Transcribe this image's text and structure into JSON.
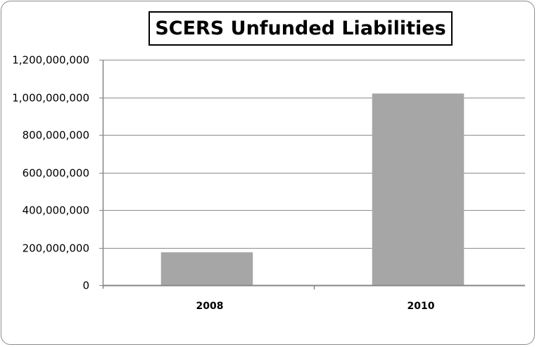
{
  "chart_data": {
    "type": "bar",
    "title": "SCERS Unfunded Liabilities",
    "xlabel": "",
    "ylabel": "",
    "categories": [
      "2008",
      "2010"
    ],
    "values": [
      175000000,
      1020000000
    ],
    "ylim": [
      0,
      1200000000
    ],
    "yticks": [
      0,
      200000000,
      400000000,
      600000000,
      800000000,
      1000000000,
      1200000000
    ],
    "ytick_labels": [
      "0",
      "200,000,000",
      "400,000,000",
      "600,000,000",
      "800,000,000",
      "1,000,000,000",
      "1,200,000,000"
    ],
    "grid": true,
    "legend": "none",
    "colors": {
      "bar": "#a6a6a6",
      "grid": "#8c8c8c",
      "axis": "#868686"
    }
  }
}
